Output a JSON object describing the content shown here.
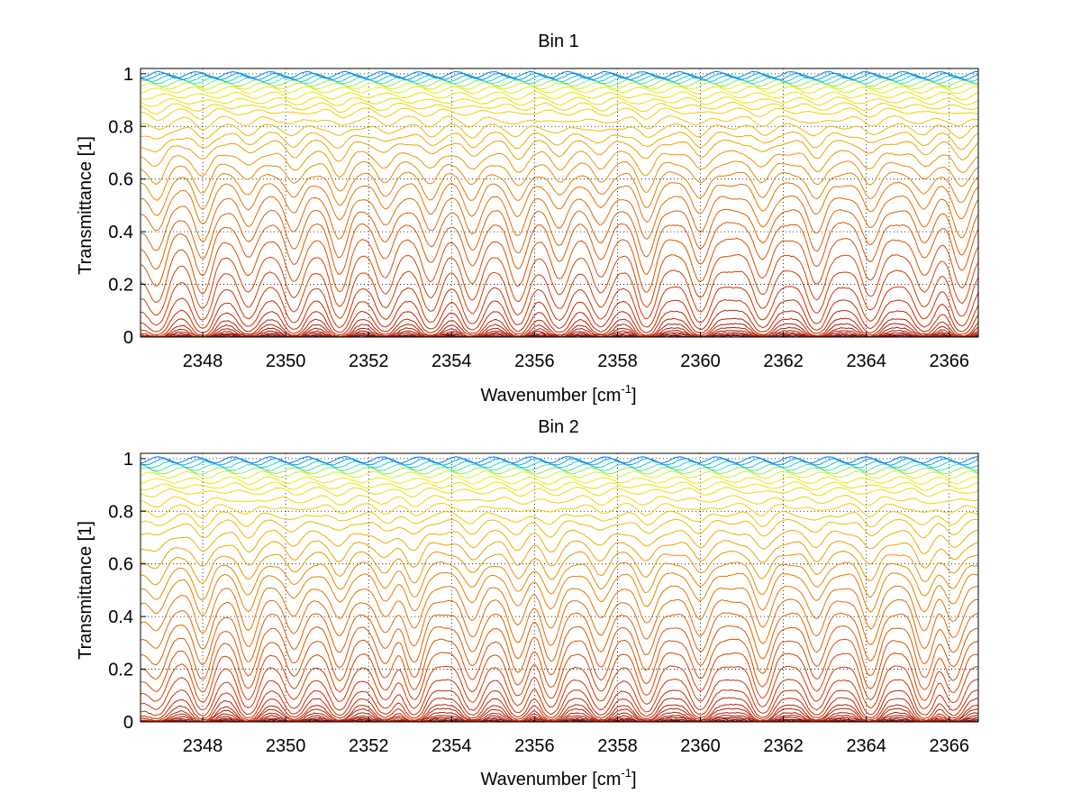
{
  "chart_data": [
    {
      "type": "line",
      "title": "Bin 1",
      "xlabel": "Wavenumber [cm",
      "xlabel_sup": "-1",
      "xlabel_end": "]",
      "ylabel": "Transmittance [1]",
      "xlim": [
        2346.5,
        2366.7
      ],
      "ylim": [
        0,
        1.02
      ],
      "xticks": [
        2348,
        2350,
        2352,
        2354,
        2356,
        2358,
        2360,
        2362,
        2364,
        2366
      ],
      "xtick_labels": [
        "2348",
        "2350",
        "2352",
        "2354",
        "2356",
        "2358",
        "2360",
        "2362",
        "2364",
        "2366"
      ],
      "yticks": [
        0,
        0.2,
        0.4,
        0.6,
        0.8,
        1
      ],
      "ytick_labels": [
        "0",
        "0.2",
        "0.4",
        "0.6",
        "0.8",
        "1"
      ],
      "grid": true,
      "line_count": 36,
      "colormap": "jet",
      "absorption_lines": [
        2346.9,
        2348.0,
        2349.1,
        2350.2,
        2351.3,
        2352.4,
        2353.5,
        2354.5,
        2355.6,
        2356.6,
        2357.6,
        2358.7,
        2360.0,
        2361.5,
        2362.8,
        2364.1,
        2365.4,
        2366.3
      ],
      "series_envelope": {
        "baseline_levels": [
          0.003,
          0.006,
          0.01,
          0.016,
          0.024,
          0.035,
          0.05,
          0.07,
          0.1,
          0.14,
          0.19,
          0.25,
          0.31,
          0.37,
          0.43,
          0.48,
          0.53,
          0.58,
          0.62,
          0.66,
          0.7,
          0.74,
          0.77,
          0.8,
          0.83,
          0.86,
          0.88,
          0.9,
          0.92,
          0.94,
          0.955,
          0.965,
          0.975,
          0.983,
          0.99,
          0.996
        ],
        "typical_min_transmittance_deepest_line": 0.42
      }
    },
    {
      "type": "line",
      "title": "Bin 2",
      "xlabel": "Wavenumber [cm",
      "xlabel_sup": "-1",
      "xlabel_end": "]",
      "ylabel": "Transmittance [1]",
      "xlim": [
        2346.5,
        2366.7
      ],
      "ylim": [
        0,
        1.02
      ],
      "xticks": [
        2348,
        2350,
        2352,
        2354,
        2356,
        2358,
        2360,
        2362,
        2364,
        2366
      ],
      "xtick_labels": [
        "2348",
        "2350",
        "2352",
        "2354",
        "2356",
        "2358",
        "2360",
        "2362",
        "2364",
        "2366"
      ],
      "yticks": [
        0,
        0.2,
        0.4,
        0.6,
        0.8,
        1
      ],
      "ytick_labels": [
        "0",
        "0.2",
        "0.4",
        "0.6",
        "0.8",
        "1"
      ],
      "grid": true,
      "line_count": 36,
      "colormap": "jet",
      "absorption_lines": [
        2346.9,
        2348.0,
        2349.1,
        2350.2,
        2351.3,
        2352.4,
        2353.1,
        2354.5,
        2355.6,
        2356.4,
        2357.6,
        2358.7,
        2360.0,
        2361.5,
        2362.8,
        2364.1,
        2365.4,
        2366.1
      ],
      "series_envelope": {
        "baseline_levels": [
          0.003,
          0.006,
          0.01,
          0.016,
          0.024,
          0.035,
          0.05,
          0.065,
          0.09,
          0.12,
          0.16,
          0.21,
          0.26,
          0.31,
          0.36,
          0.41,
          0.46,
          0.51,
          0.56,
          0.6,
          0.64,
          0.68,
          0.72,
          0.76,
          0.79,
          0.82,
          0.85,
          0.88,
          0.9,
          0.92,
          0.94,
          0.955,
          0.967,
          0.978,
          0.988,
          0.995
        ],
        "typical_min_transmittance_deepest_line": 0.45
      }
    }
  ]
}
